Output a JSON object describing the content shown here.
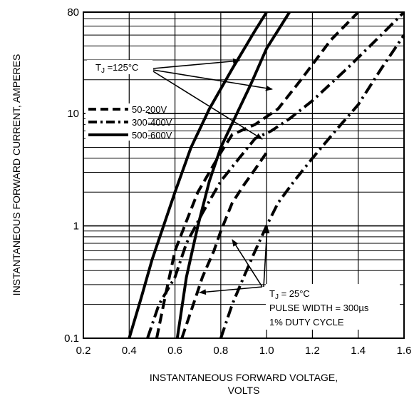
{
  "chart_data": {
    "type": "line",
    "title": "",
    "xlabel_lines": [
      "INSTANTANEOUS FORWARD VOLTAGE,",
      "VOLTS"
    ],
    "ylabel": "INSTANTANEOUS FORWARD CURRENT, AMPERES",
    "xlim": [
      0.2,
      1.6
    ],
    "ylim": [
      0.1,
      80
    ],
    "yscale": "log",
    "x_ticks": [
      "0.2",
      "0.4",
      "0.6",
      "0.8",
      "1.0",
      "1.2",
      "1.4",
      "1.6"
    ],
    "y_ticks": [
      "0.1",
      "1",
      "10",
      "80"
    ],
    "grid": "vertical every 0.2 V; horizontal at each decade minor step",
    "legend_position": "left-middle",
    "legend": [
      {
        "label": "50-200V",
        "style": "dashed"
      },
      {
        "label": "300-400V",
        "style": "dash-dot"
      },
      {
        "label": "500-600V",
        "style": "solid"
      }
    ],
    "series": [
      {
        "legend_index": 2,
        "condition": "TJ=125C",
        "x": [
          0.4,
          0.45,
          0.5,
          0.55,
          0.6,
          0.67,
          0.75,
          0.85,
          0.95,
          1.0
        ],
        "y": [
          0.1,
          0.22,
          0.5,
          1.0,
          2.0,
          5.0,
          11.0,
          25.0,
          55.0,
          80.0
        ]
      },
      {
        "legend_index": 0,
        "condition": "TJ=125C",
        "x": [
          0.52,
          0.56,
          0.6,
          0.65,
          0.7,
          0.75,
          0.8,
          0.85,
          0.95,
          1.05,
          1.15,
          1.28,
          1.4
        ],
        "y": [
          0.1,
          0.25,
          0.6,
          1.1,
          2.0,
          3.0,
          4.5,
          6.5,
          8.0,
          11.0,
          20.0,
          45.0,
          80.0
        ]
      },
      {
        "legend_index": 1,
        "condition": "TJ=125C",
        "x": [
          0.48,
          0.53,
          0.6,
          0.65,
          0.72,
          0.8,
          0.88,
          0.95,
          1.02,
          1.1,
          1.2,
          1.35,
          1.5,
          1.6
        ],
        "y": [
          0.1,
          0.2,
          0.35,
          0.7,
          1.3,
          2.5,
          4.0,
          6.0,
          7.0,
          9.0,
          13.0,
          25.0,
          50.0,
          80.0
        ]
      },
      {
        "legend_index": 2,
        "condition": "TJ=25C",
        "x": [
          0.61,
          0.65,
          0.7,
          0.75,
          0.8,
          0.87,
          0.93,
          1.0,
          1.05,
          1.1
        ],
        "y": [
          0.1,
          0.35,
          1.0,
          2.5,
          5.0,
          10.0,
          18.0,
          38.0,
          55.0,
          80.0
        ]
      },
      {
        "legend_index": 0,
        "condition": "TJ=25C",
        "x": [
          0.63,
          0.68,
          0.72,
          0.77,
          0.8,
          0.85,
          0.9,
          0.95,
          1.0
        ],
        "y": [
          0.1,
          0.2,
          0.35,
          0.6,
          0.9,
          1.6,
          2.3,
          3.2,
          4.5
        ]
      },
      {
        "legend_index": 1,
        "condition": "TJ=25C",
        "x": [
          0.8,
          0.85,
          0.9,
          0.95,
          1.0,
          1.05,
          1.12,
          1.2,
          1.3,
          1.4,
          1.5,
          1.6
        ],
        "y": [
          0.1,
          0.2,
          0.35,
          0.6,
          1.0,
          1.6,
          2.5,
          4.0,
          7.0,
          12.0,
          25.0,
          50.0
        ]
      }
    ],
    "annotations": [
      {
        "parts": [
          "T",
          "J",
          " =125°C"
        ]
      },
      {
        "parts": [
          "T",
          "J",
          " = 25°C"
        ]
      },
      {
        "text": "PULSE WIDTH = 300µs"
      },
      {
        "text": "1% DUTY CYCLE"
      }
    ]
  }
}
